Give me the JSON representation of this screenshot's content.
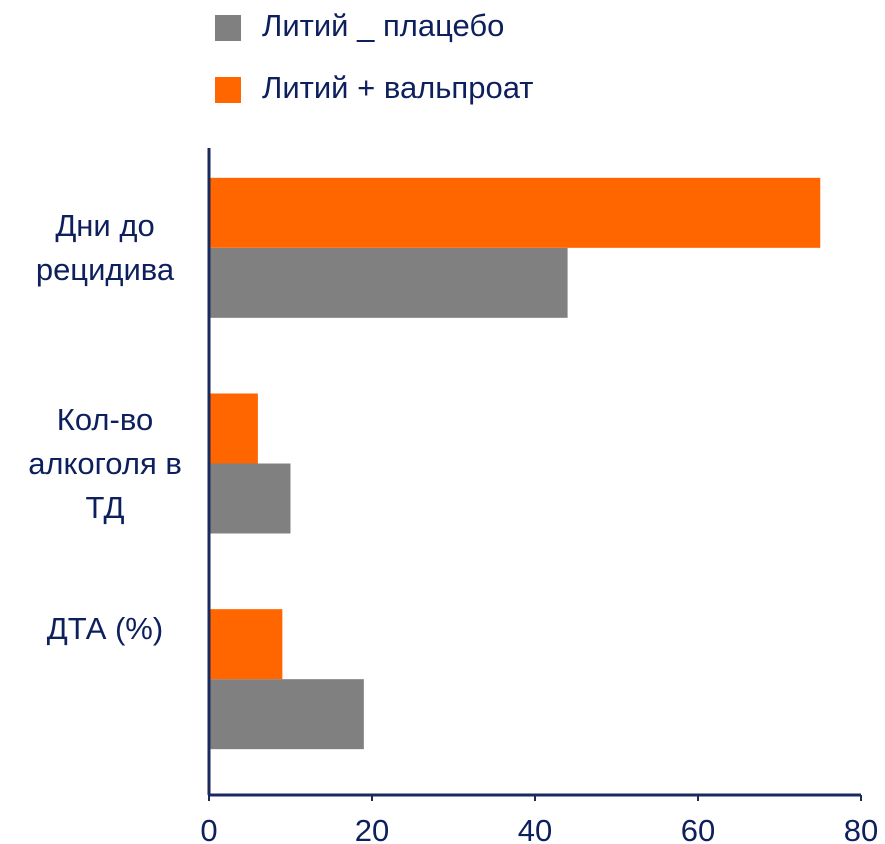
{
  "chart_data": {
    "type": "barh",
    "categories": [
      "Дни до\nрецидива",
      "Кол-во\nалкоголя в\nТД",
      "ДТА (%)"
    ],
    "series": [
      {
        "name": "Литий _ плацебо",
        "color": "#808080",
        "values": [
          44,
          10,
          19
        ]
      },
      {
        "name": "Литий + вальпроат",
        "color": "#ff6600",
        "values": [
          75,
          6,
          9
        ]
      }
    ],
    "xlim": [
      0,
      80
    ],
    "xticks": [
      0,
      20,
      40,
      60,
      80
    ],
    "grid": false
  }
}
